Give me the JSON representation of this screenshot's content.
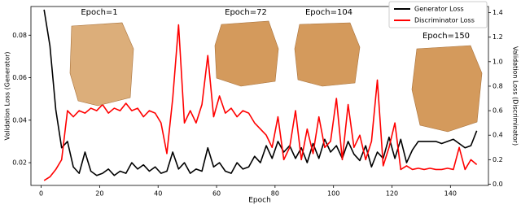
{
  "chart_data": {
    "type": "line",
    "xlabel": "Epoch",
    "ylabel": "Validation Loss (Generator)",
    "y2label": "Validation Loss (Discriminator)",
    "annotations": [
      "Epoch=1",
      "Epoch=72",
      "Epoch=104",
      "Epoch=150"
    ],
    "x": [
      1,
      3,
      5,
      7,
      9,
      11,
      13,
      15,
      17,
      19,
      21,
      23,
      25,
      27,
      29,
      31,
      33,
      35,
      37,
      39,
      41,
      43,
      45,
      47,
      49,
      51,
      53,
      55,
      57,
      59,
      61,
      63,
      65,
      67,
      69,
      71,
      73,
      75,
      77,
      79,
      81,
      83,
      85,
      87,
      89,
      91,
      93,
      95,
      97,
      99,
      101,
      103,
      105,
      107,
      109,
      111,
      113,
      115,
      117,
      119,
      121,
      123,
      125,
      127,
      129,
      131,
      133,
      135,
      137,
      139,
      141,
      143,
      145,
      147,
      149
    ],
    "series": [
      {
        "name": "Generator Loss",
        "color": "#000000",
        "values": [
          0.092,
          0.075,
          0.045,
          0.027,
          0.03,
          0.018,
          0.015,
          0.025,
          0.016,
          0.014,
          0.015,
          0.017,
          0.014,
          0.016,
          0.015,
          0.02,
          0.017,
          0.019,
          0.016,
          0.018,
          0.015,
          0.016,
          0.025,
          0.017,
          0.02,
          0.015,
          0.017,
          0.016,
          0.027,
          0.018,
          0.02,
          0.016,
          0.015,
          0.02,
          0.017,
          0.018,
          0.023,
          0.02,
          0.028,
          0.022,
          0.03,
          0.025,
          0.028,
          0.022,
          0.027,
          0.02,
          0.029,
          0.022,
          0.031,
          0.025,
          0.028,
          0.022,
          0.03,
          0.024,
          0.021,
          0.028,
          0.018,
          0.025,
          0.022,
          0.032,
          0.022,
          0.031,
          0.02,
          0.026,
          0.03,
          0.03,
          0.03,
          0.03,
          0.029,
          0.03,
          0.031,
          0.029,
          0.027,
          0.028,
          0.035
        ]
      },
      {
        "name": "Discriminator Loss",
        "color": "#ff0000",
        "axis": "y2",
        "values": [
          0.03,
          0.06,
          0.12,
          0.2,
          0.6,
          0.55,
          0.6,
          0.58,
          0.62,
          0.6,
          0.65,
          0.58,
          0.62,
          0.6,
          0.66,
          0.6,
          0.62,
          0.55,
          0.6,
          0.58,
          0.5,
          0.25,
          0.7,
          1.3,
          0.5,
          0.6,
          0.5,
          0.65,
          1.05,
          0.55,
          0.72,
          0.58,
          0.62,
          0.55,
          0.6,
          0.58,
          0.5,
          0.45,
          0.4,
          0.3,
          0.55,
          0.2,
          0.3,
          0.6,
          0.2,
          0.45,
          0.25,
          0.55,
          0.3,
          0.35,
          0.7,
          0.2,
          0.65,
          0.3,
          0.4,
          0.2,
          0.35,
          0.85,
          0.15,
          0.3,
          0.5,
          0.12,
          0.15,
          0.12,
          0.13,
          0.12,
          0.13,
          0.12,
          0.12,
          0.13,
          0.12,
          0.3,
          0.12,
          0.2,
          0.16
        ]
      }
    ],
    "xlim": [
      -3.5,
      153
    ],
    "xticks": [
      0,
      20,
      40,
      60,
      80,
      100,
      120,
      140
    ],
    "ylim": [
      0.0093,
      0.0935
    ],
    "yticks": [
      0.02,
      0.04,
      0.06,
      0.08
    ],
    "y2lim": [
      -0.01,
      1.45
    ],
    "y2ticks": [
      {
        "value": 0,
        "label": "0.0"
      },
      0.2,
      0.4,
      0.6,
      0.8,
      {
        "value": 1,
        "label": "1.0"
      },
      1.2,
      1.4
    ],
    "legend": "upper right"
  }
}
